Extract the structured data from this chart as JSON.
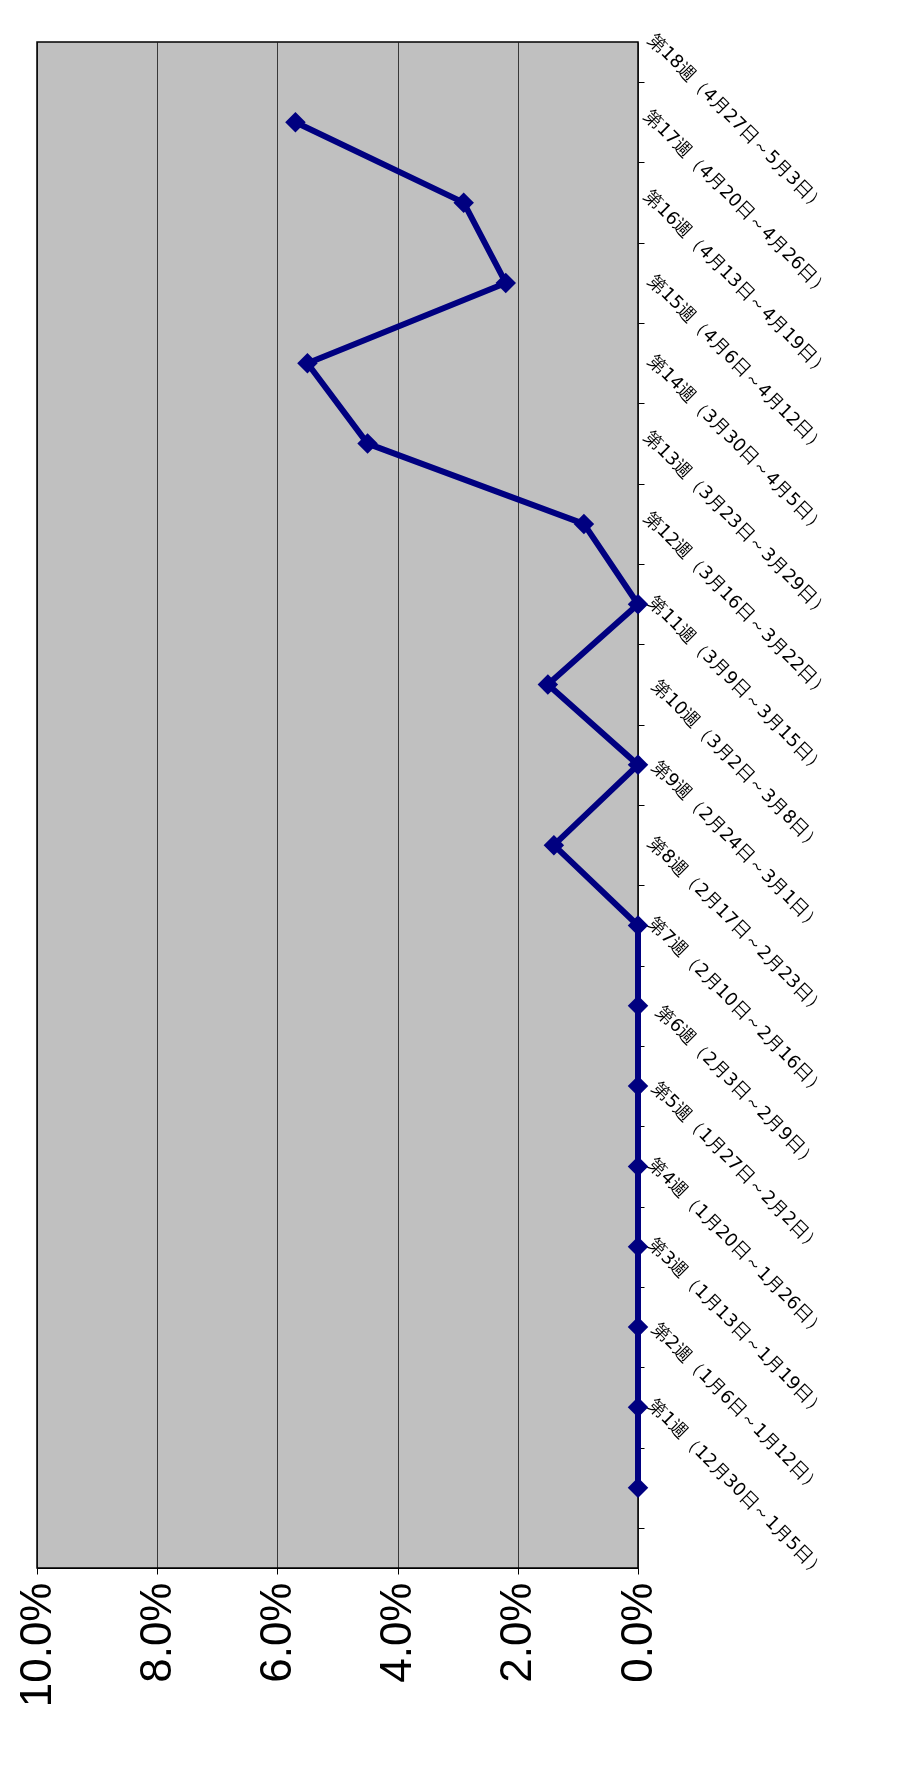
{
  "chart_data": {
    "type": "line",
    "orientation": "horizontal",
    "categories": [
      "第18週（4月27日～5月3日）",
      "第17週（4月20日～4月26日）",
      "第16週（4月13日～4月19日）",
      "第15週（4月6日～4月12日）",
      "第14週（3月30日～4月5日）",
      "第13週（3月23日～3月29日）",
      "第12週（3月16日～3月22日）",
      "第11週（3月9日～3月15日）",
      "第10週（3月2日～3月8日）",
      "第9週（2月24日～3月1日）",
      "第8週（2月17日～2月23日）",
      "第7週（2月10日～2月16日）",
      "第6週（2月3日～2月9日）",
      "第5週（1月27日～2月2日）",
      "第4週（1月20日～1月26日）",
      "第3週（1月13日～1月19日）",
      "第2週（1月6日～1月12日）",
      "第1週（12月30日～1月5日）"
    ],
    "values": [
      5.7,
      2.9,
      2.2,
      5.5,
      4.5,
      0.9,
      0,
      1.5,
      0,
      1.4,
      0,
      0,
      0,
      0,
      0,
      0,
      0,
      0
    ],
    "color": "#000080",
    "marker": "diamond",
    "grid": "x",
    "xlim": [
      10,
      0
    ],
    "xticks": [
      {
        "value": 10,
        "label": "10.0%"
      },
      {
        "value": 8,
        "label": "8.0%"
      },
      {
        "value": 6,
        "label": "6.0%"
      },
      {
        "value": 4,
        "label": "4.0%"
      },
      {
        "value": 2,
        "label": "2.0%"
      },
      {
        "value": 0,
        "label": "0.0%"
      }
    ]
  }
}
